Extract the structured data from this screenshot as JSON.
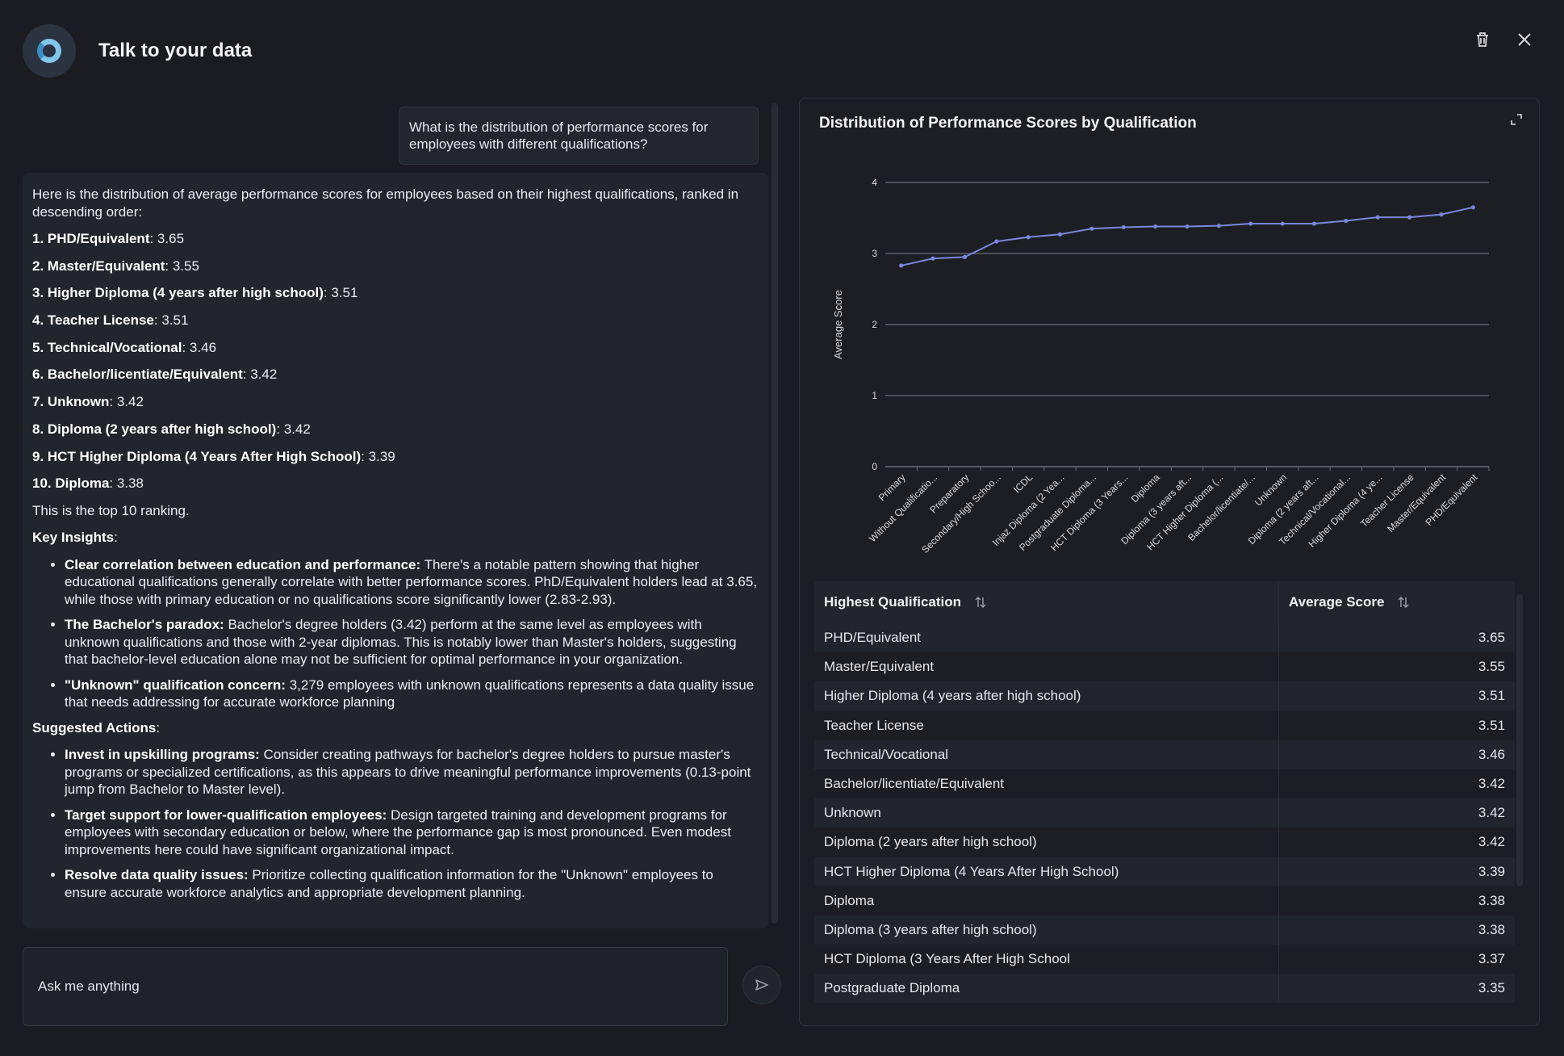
{
  "app": {
    "title": "Talk to your data"
  },
  "user_message": "What is the distribution of performance scores for employees with different qualifications?",
  "answer": {
    "intro": "Here is the distribution of average performance scores for employees based on their highest qualifications, ranked in descending order:",
    "rankings": [
      {
        "rank": "1. PHD/Equivalent",
        "value": ": 3.65"
      },
      {
        "rank": "2. Master/Equivalent",
        "value": ": 3.55"
      },
      {
        "rank": "3. Higher Diploma (4 years after high school)",
        "value": ": 3.51"
      },
      {
        "rank": "4. Teacher License",
        "value": ": 3.51"
      },
      {
        "rank": "5. Technical/Vocational",
        "value": ": 3.46"
      },
      {
        "rank": "6. Bachelor/licentiate/Equivalent",
        "value": ": 3.42"
      },
      {
        "rank": "7. Unknown",
        "value": ": 3.42"
      },
      {
        "rank": "8. Diploma (2 years after high school)",
        "value": ": 3.42"
      },
      {
        "rank": "9. HCT Higher Diploma (4 Years After High School)",
        "value": ": 3.39"
      },
      {
        "rank": "10. Diploma",
        "value": ": 3.38"
      }
    ],
    "ranking_note": "This is the top 10 ranking.",
    "insights_heading": "Key Insights",
    "insights": [
      {
        "bold": "Clear correlation between education and performance:",
        "text": " There's a notable pattern showing that higher educational qualifications generally correlate with better performance scores. PhD/Equivalent holders lead at 3.65, while those with primary education or no qualifications score significantly lower (2.83-2.93)."
      },
      {
        "bold": "The Bachelor's paradox:",
        "text": " Bachelor's degree holders (3.42) perform at the same level as employees with unknown qualifications and those with 2-year diplomas. This is notably lower than Master's holders, suggesting that bachelor-level education alone may not be sufficient for optimal performance in your organization."
      },
      {
        "bold": "\"Unknown\" qualification concern:",
        "text": " 3,279 employees with unknown qualifications represents a data quality issue that needs addressing for accurate workforce planning"
      }
    ],
    "actions_heading": "Suggested Actions",
    "actions": [
      {
        "bold": "Invest in upskilling programs:",
        "text": " Consider creating pathways for bachelor's degree holders to pursue master's programs or specialized certifications, as this appears to drive meaningful performance improvements (0.13-point jump from Bachelor to Master level)."
      },
      {
        "bold": "Target support for lower-qualification employees:",
        "text": " Design targeted training and development programs for employees with secondary education or below, where the performance gap is most pronounced. Even modest improvements here could have significant organizational impact."
      },
      {
        "bold": "Resolve data quality issues:",
        "text": " Prioritize collecting qualification information for the \"Unknown\" employees to ensure accurate workforce analytics and appropriate development planning."
      }
    ]
  },
  "input": {
    "placeholder": "Ask me anything"
  },
  "panel": {
    "title": "Distribution of Performance Scores by Qualification",
    "table": {
      "headers": [
        "Highest Qualification",
        "Average Score"
      ],
      "rows": [
        [
          "PHD/Equivalent",
          "3.65"
        ],
        [
          "Master/Equivalent",
          "3.55"
        ],
        [
          "Higher Diploma (4 years after high school)",
          "3.51"
        ],
        [
          "Teacher License",
          "3.51"
        ],
        [
          "Technical/Vocational",
          "3.46"
        ],
        [
          "Bachelor/licentiate/Equivalent",
          "3.42"
        ],
        [
          "Unknown",
          "3.42"
        ],
        [
          "Diploma (2 years after high school)",
          "3.42"
        ],
        [
          "HCT Higher Diploma (4 Years After High School)",
          "3.39"
        ],
        [
          "Diploma",
          "3.38"
        ],
        [
          "Diploma (3 years after high school)",
          "3.38"
        ],
        [
          "HCT Diploma (3 Years After High School",
          "3.37"
        ],
        [
          "Postgraduate Diploma",
          "3.35"
        ]
      ]
    }
  },
  "colors": {
    "background": "#1b1c22",
    "card": "#23252d",
    "line": "#7b86e0",
    "grid": "#6b6d75"
  },
  "chart_data": {
    "type": "line",
    "title": "",
    "xlabel": "",
    "ylabel": "Average Score",
    "ylim": [
      0,
      4
    ],
    "yticks": [
      0,
      1,
      2,
      3,
      4
    ],
    "grid": true,
    "categories": [
      "Primary",
      "Without Qualificatio...",
      "Preparatory",
      "Secondary/High Schoo...",
      "ICDL",
      "Injaz Diploma (2 Yea...",
      "Postgraduate Diploma...",
      "HCT Diploma (3 Years...",
      "Diploma",
      "Diploma (3 years aft...",
      "HCT Higher Diploma (...",
      "Bachelor/licentiate/...",
      "Unknown",
      "Diploma (2 years aft...",
      "Technical/Vocational...",
      "Higher Diploma (4 ye...",
      "Teacher License",
      "Master/Equivalent",
      "PHD/Equivalent"
    ],
    "values": [
      2.83,
      2.93,
      2.95,
      3.17,
      3.23,
      3.27,
      3.35,
      3.37,
      3.38,
      3.38,
      3.39,
      3.42,
      3.42,
      3.42,
      3.46,
      3.51,
      3.51,
      3.55,
      3.65
    ]
  }
}
